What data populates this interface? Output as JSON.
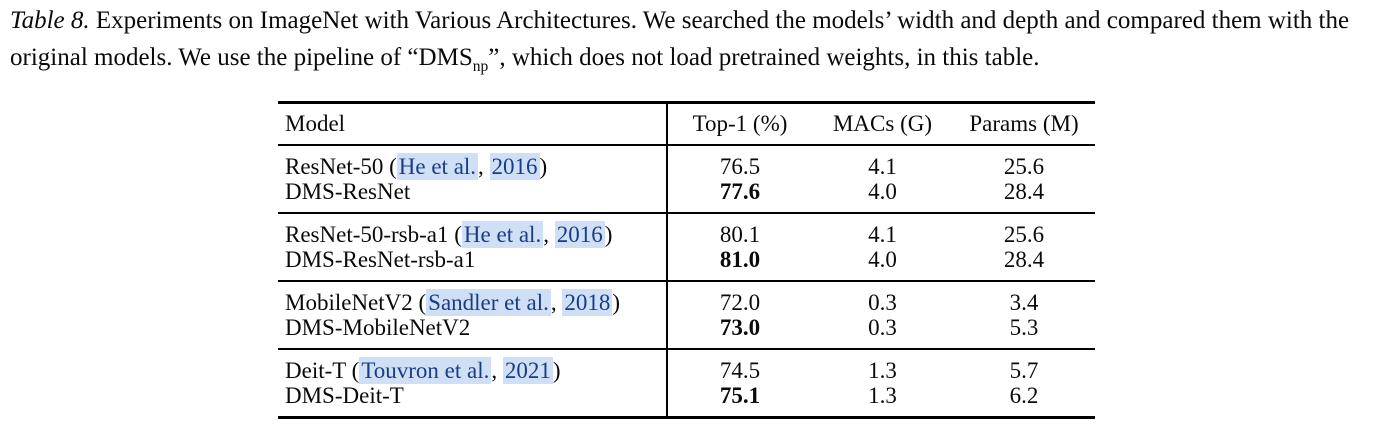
{
  "caption": {
    "label": "Table 8.",
    "text_before_sub": " Experiments on ImageNet with Various Architectures. We searched the models’ width and depth and compared them with the original models. We use the pipeline of “DMS",
    "sub": "np",
    "text_after_sub": "”, which does not load pretrained weights, in this table."
  },
  "table": {
    "columns": [
      "Model",
      "Top-1 (%)",
      "MACs (G)",
      "Params (M)"
    ],
    "groups": [
      {
        "rows": [
          {
            "model": {
              "prefix": "ResNet-50 (",
              "cite_names": "He et al.",
              "cite_sep": ", ",
              "cite_year": "2016",
              "suffix": ")"
            },
            "top1": "76.5",
            "macs": "4.1",
            "params": "25.6"
          },
          {
            "model": {
              "prefix": "DMS-ResNet"
            },
            "top1": "77.6",
            "macs": "4.0",
            "params": "28.4"
          }
        ]
      },
      {
        "rows": [
          {
            "model": {
              "prefix": "ResNet-50-rsb-a1 (",
              "cite_names": "He et al.",
              "cite_sep": ", ",
              "cite_year": "2016",
              "suffix": ")"
            },
            "top1": "80.1",
            "macs": "4.1",
            "params": "25.6"
          },
          {
            "model": {
              "prefix": "DMS-ResNet-rsb-a1"
            },
            "top1": "81.0",
            "macs": "4.0",
            "params": "28.4"
          }
        ]
      },
      {
        "rows": [
          {
            "model": {
              "prefix": "MobileNetV2 (",
              "cite_names": "Sandler et al.",
              "cite_sep": ", ",
              "cite_year": "2018",
              "suffix": ")"
            },
            "top1": "72.0",
            "macs": "0.3",
            "params": "3.4"
          },
          {
            "model": {
              "prefix": "DMS-MobileNetV2"
            },
            "top1": "73.0",
            "macs": "0.3",
            "params": "5.3"
          }
        ]
      },
      {
        "rows": [
          {
            "model": {
              "prefix": "Deit-T (",
              "cite_names": "Touvron et al.",
              "cite_sep": ", ",
              "cite_year": "2021",
              "suffix": ")"
            },
            "top1": "74.5",
            "macs": "1.3",
            "params": "5.7"
          },
          {
            "model": {
              "prefix": "DMS-Deit-T"
            },
            "top1": "75.1",
            "macs": "1.3",
            "params": "6.2"
          }
        ]
      }
    ]
  },
  "colors": {
    "link_text": "#1a3c85",
    "link_highlight": "#cfe0f6",
    "rule": "#000000",
    "background": "#ffffff"
  }
}
